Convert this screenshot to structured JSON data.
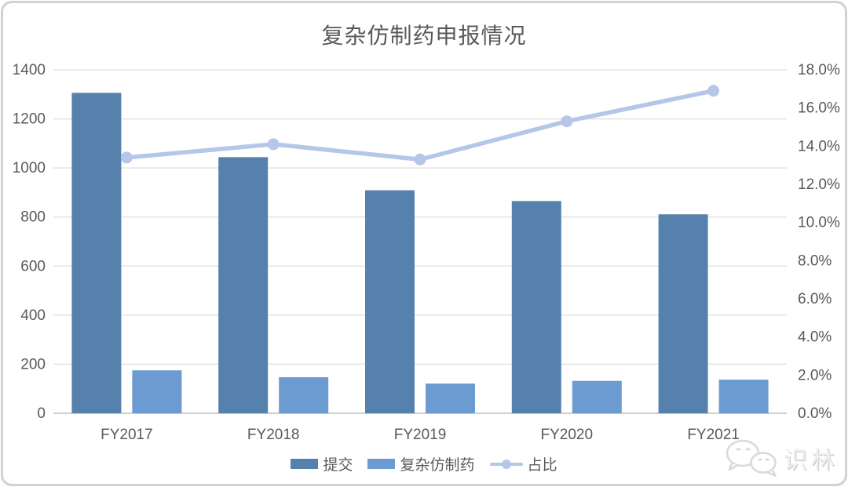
{
  "title": "复杂仿制药申报情况",
  "chart_data": {
    "type": "bar",
    "subtype": "combo-bar-line-dual-axis",
    "title": "复杂仿制药申报情况",
    "xlabel": "",
    "ylabel": "",
    "categories": [
      "FY2017",
      "FY2018",
      "FY2019",
      "FY2020",
      "FY2021"
    ],
    "series": [
      {
        "name": "提交",
        "type": "bar",
        "axis": "left",
        "color": "#5681AC",
        "values": [
          1306,
          1044,
          909,
          865,
          811
        ]
      },
      {
        "name": "复杂仿制药",
        "type": "bar",
        "axis": "left",
        "color": "#6B9BD1",
        "values": [
          175,
          147,
          121,
          132,
          137
        ]
      },
      {
        "name": "占比",
        "type": "line",
        "axis": "right",
        "color": "#B5C7E8",
        "unit": "%",
        "values": [
          13.4,
          14.1,
          13.3,
          15.3,
          16.9
        ]
      }
    ],
    "left_axis": {
      "min": 0,
      "max": 1400,
      "step": 200,
      "ticks": [
        "0",
        "200",
        "400",
        "600",
        "800",
        "1000",
        "1200",
        "1400"
      ]
    },
    "right_axis": {
      "min": 0,
      "max": 18,
      "step": 2,
      "ticks": [
        "0.0%",
        "2.0%",
        "4.0%",
        "6.0%",
        "8.0%",
        "10.0%",
        "12.0%",
        "14.0%",
        "16.0%",
        "18.0%"
      ]
    },
    "grid": true,
    "legend_position": "bottom"
  },
  "legend": {
    "items": [
      {
        "label": "提交",
        "marker": "bar-swatch",
        "color": "#5681AC"
      },
      {
        "label": "复杂仿制药",
        "marker": "bar-swatch",
        "color": "#6B9BD1"
      },
      {
        "label": "占比",
        "marker": "line-dot-swatch",
        "color": "#B5C7E8"
      }
    ]
  },
  "watermark": {
    "icon": "wechat-icon",
    "text": "识林"
  }
}
